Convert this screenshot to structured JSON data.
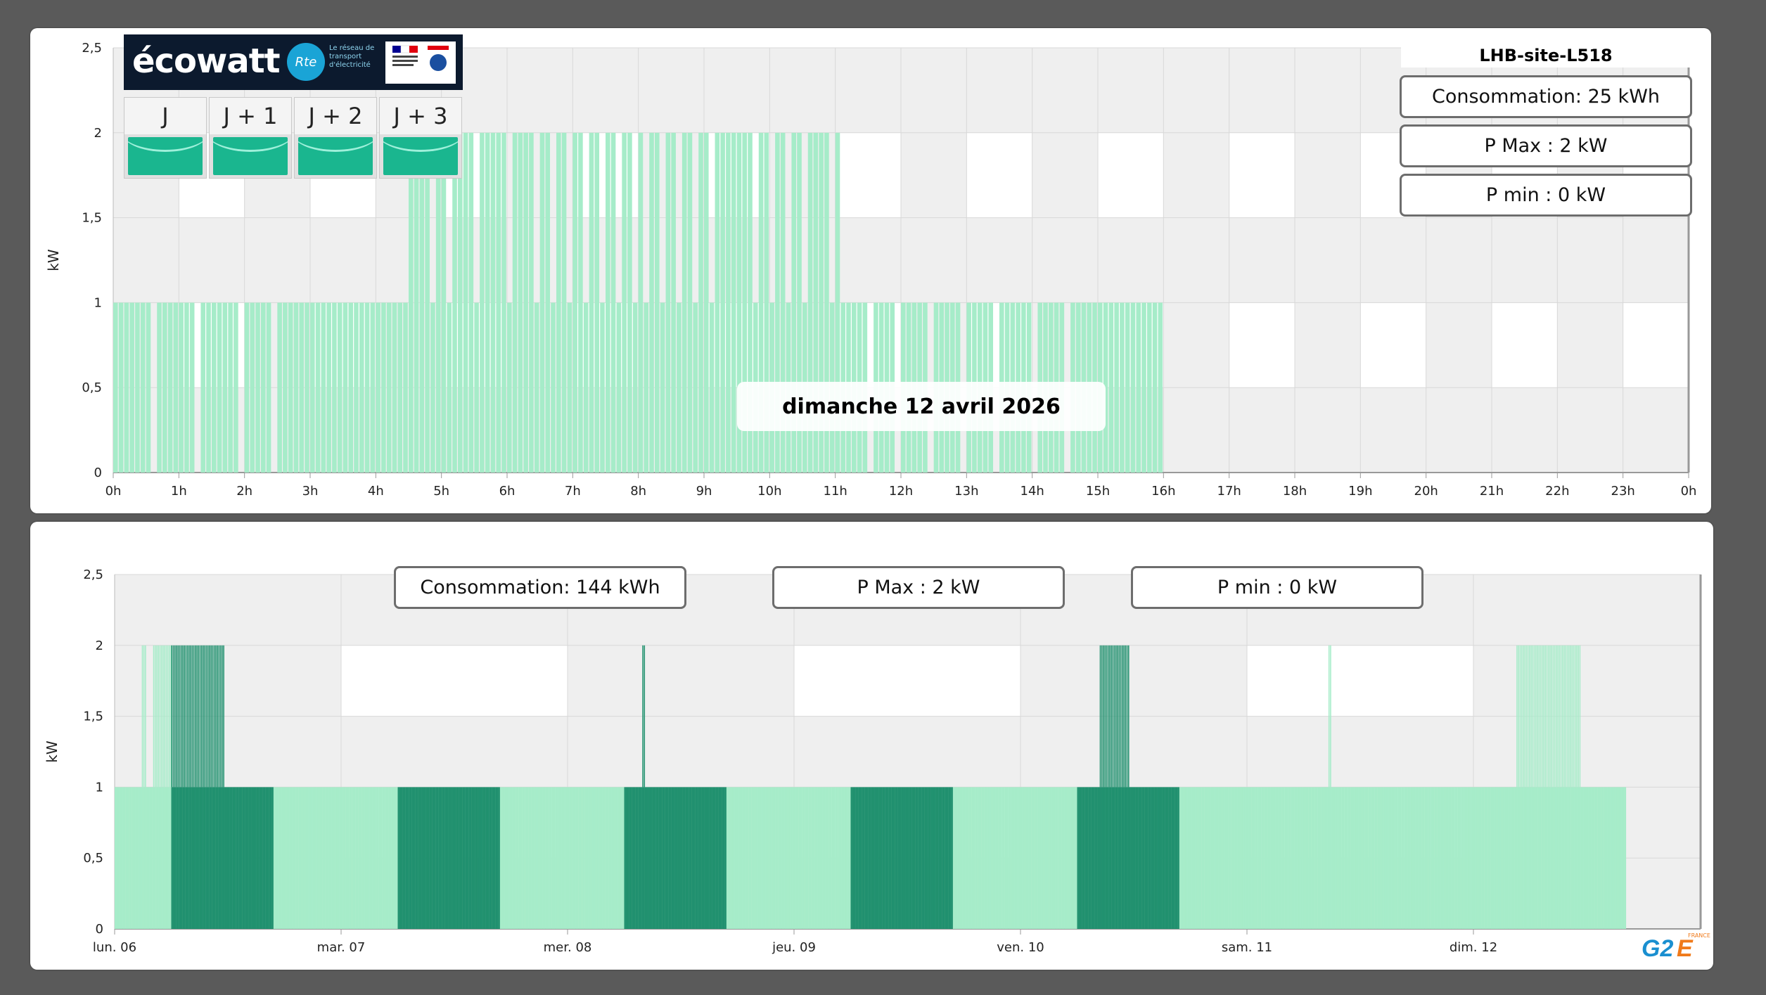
{
  "top": {
    "site_name": "LHB-site-L518",
    "consommation": "Consommation: 25 kWh",
    "pmax": "P Max :  2 kW",
    "pmin": "P min : 0 kW",
    "date_label": "dimanche 12 avril 2026",
    "ylabel": "kW",
    "y_ticks": [
      "0",
      "0,5",
      "1",
      "1,5",
      "2",
      "2,5"
    ],
    "x_ticks": [
      "0h",
      "1h",
      "2h",
      "3h",
      "4h",
      "5h",
      "6h",
      "7h",
      "8h",
      "9h",
      "10h",
      "11h",
      "12h",
      "13h",
      "14h",
      "15h",
      "16h",
      "17h",
      "18h",
      "19h",
      "20h",
      "21h",
      "22h",
      "23h",
      "0h"
    ]
  },
  "ecowatt": {
    "logo_text": "écowatt",
    "rte_text": "Rte",
    "rte_tagline": "Le réseau de transport d'électricité",
    "days": [
      "J",
      "J + 1",
      "J + 2",
      "J + 3"
    ],
    "day_color": "#1ab68f"
  },
  "bottom": {
    "consommation": "Consommation: 144 kWh",
    "pmax": "P Max :  2 kW",
    "pmin": "P min : 0 kW",
    "ylabel": "kW",
    "y_ticks": [
      "0",
      "0,5",
      "1",
      "1,5",
      "2",
      "2,5"
    ],
    "x_ticks": [
      "lun. 06",
      "mar. 07",
      "mer. 08",
      "jeu. 09",
      "ven. 10",
      "sam. 11",
      "dim. 12"
    ]
  },
  "logo": {
    "g2": "G2",
    "e": "E",
    "country": "FRANCE"
  },
  "colors": {
    "bar_light": "#a6ecc9",
    "bar_dark": "#21916f",
    "band": "#efefef",
    "grid": "#d8d8d8"
  },
  "chart_data": [
    {
      "type": "bar",
      "title": "dimanche 12 avril 2026",
      "ylabel": "kW",
      "ylim": [
        0,
        2.5
      ],
      "x_unit": "hour",
      "xlim": [
        0,
        24
      ],
      "series": [
        {
          "values_description_free": true,
          "segments": [
            {
              "start": 0.0,
              "end": 4.5,
              "kw": 1
            },
            {
              "start": 4.5,
              "end": 11.1,
              "kw": 2
            },
            {
              "start": 11.1,
              "end": 16.1,
              "kw": 1
            }
          ],
          "gaps": [
            [
              0.62,
              0.68
            ],
            [
              1.27,
              1.33
            ],
            [
              1.92,
              1.98
            ],
            [
              2.43,
              2.48
            ],
            [
              2.97,
              3.03
            ],
            [
              3.63,
              3.68
            ],
            [
              3.98,
              4.04
            ],
            [
              11.52,
              11.57
            ],
            [
              11.93,
              11.98
            ],
            [
              12.42,
              12.47
            ],
            [
              12.93,
              12.98
            ],
            [
              13.42,
              13.47
            ],
            [
              13.73,
              13.78
            ],
            [
              14.02,
              14.07
            ],
            [
              14.53,
              14.58
            ],
            [
              14.98,
              15.03
            ],
            [
              15.3,
              15.36
            ],
            [
              15.73,
              15.78
            ],
            [
              16.02,
              16.06
            ]
          ],
          "peak_gaps": [
            [
              4.63,
              4.7
            ],
            [
              4.83,
              4.9
            ],
            [
              5.1,
              5.17
            ],
            [
              5.5,
              5.56
            ],
            [
              5.72,
              5.78
            ],
            [
              6.0,
              6.06
            ],
            [
              6.22,
              6.28
            ],
            [
              6.45,
              6.51
            ],
            [
              6.7,
              6.76
            ],
            [
              6.95,
              7.01
            ],
            [
              7.18,
              7.24
            ],
            [
              7.4,
              7.46
            ],
            [
              7.65,
              7.71
            ],
            [
              7.9,
              7.96
            ],
            [
              8.12,
              8.18
            ],
            [
              8.37,
              8.43
            ],
            [
              8.6,
              8.66
            ],
            [
              8.85,
              8.91
            ],
            [
              9.08,
              9.14
            ],
            [
              9.3,
              9.36
            ],
            [
              9.56,
              9.62
            ],
            [
              9.78,
              9.84
            ],
            [
              10.02,
              10.08
            ],
            [
              10.26,
              10.32
            ],
            [
              10.5,
              10.56
            ],
            [
              10.73,
              10.79
            ],
            [
              10.95,
              11.02
            ]
          ]
        }
      ]
    },
    {
      "type": "bar",
      "ylabel": "kW",
      "ylim": [
        0,
        2.5
      ],
      "x_unit": "day",
      "xlim": [
        0,
        7
      ],
      "categories": [
        "lun. 06",
        "mar. 07",
        "mer. 08",
        "jeu. 09",
        "ven. 10",
        "sam. 11",
        "dim. 12"
      ],
      "series": [
        {
          "base_kw": 1,
          "base_range": [
            0,
            6.67
          ],
          "dark_ranges": [
            [
              0.25,
              0.7
            ],
            [
              1.25,
              1.7
            ],
            [
              2.25,
              2.7
            ],
            [
              3.25,
              3.7
            ],
            [
              4.25,
              4.7
            ]
          ],
          "peak_ranges": [
            {
              "start": 0.12,
              "end": 0.14,
              "kw": 2,
              "dark": false
            },
            {
              "start": 0.17,
              "end": 0.25,
              "kw": 2,
              "dark": false
            },
            {
              "start": 0.25,
              "end": 0.48,
              "kw": 2,
              "dark": true
            },
            {
              "start": 2.33,
              "end": 2.34,
              "kw": 2,
              "dark": true
            },
            {
              "start": 4.35,
              "end": 4.48,
              "kw": 2,
              "dark": true
            },
            {
              "start": 5.36,
              "end": 5.37,
              "kw": 2,
              "dark": false
            },
            {
              "start": 6.19,
              "end": 6.47,
              "kw": 2,
              "dark": false
            }
          ]
        }
      ]
    }
  ]
}
